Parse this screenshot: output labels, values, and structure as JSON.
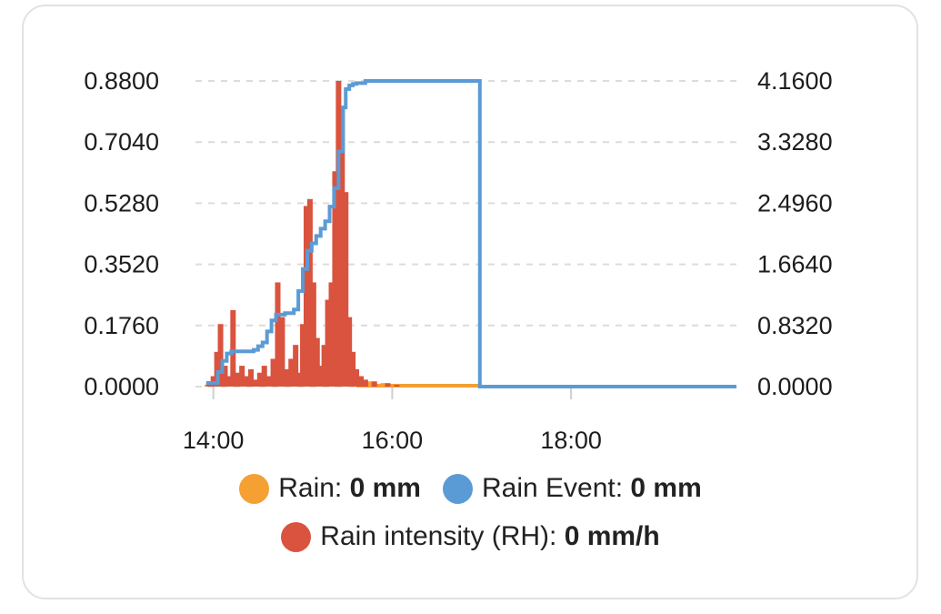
{
  "chart_data": {
    "type": "bar+line",
    "x_ticks": [
      "14:00",
      "16:00",
      "18:00"
    ],
    "y_left_ticks": [
      "0.0000",
      "0.1760",
      "0.3520",
      "0.5280",
      "0.7040",
      "0.8800"
    ],
    "y_right_ticks": [
      "0.0000",
      "0.8320",
      "1.6640",
      "2.4960",
      "3.3280",
      "4.1600"
    ],
    "y_left_range": [
      0,
      0.88
    ],
    "y_right_range": [
      0,
      4.16
    ],
    "x_range_hours": [
      13.8,
      19.9
    ],
    "grid": true,
    "legend_placement": "bottom",
    "series": [
      {
        "name": "Rain",
        "current": "0 mm",
        "color": "#f4a033",
        "axis": "left",
        "style": "bar",
        "x": [
          13.93,
          14.05,
          14.15,
          14.25,
          14.35,
          14.45,
          14.55,
          14.65,
          14.75,
          14.85,
          14.95,
          15.02,
          15.08,
          15.14,
          15.2,
          15.26,
          15.32,
          15.38,
          15.44,
          15.5,
          15.56,
          15.65,
          15.75,
          15.9,
          16.05
        ],
        "values": [
          0.005,
          0.01,
          0.02,
          0.015,
          0.01,
          0.015,
          0.02,
          0.02,
          0.03,
          0.025,
          0.02,
          0.03,
          0.045,
          0.03,
          0.02,
          0.025,
          0.035,
          0.045,
          0.06,
          0.07,
          0.03,
          0.02,
          0.015,
          0.01,
          0.005
        ]
      },
      {
        "name": "Rain intensity (RH)",
        "current": "0 mm/h",
        "color": "#d9533f",
        "axis": "left",
        "style": "bar",
        "x": [
          13.95,
          14.0,
          14.04,
          14.08,
          14.13,
          14.18,
          14.22,
          14.27,
          14.32,
          14.37,
          14.42,
          14.47,
          14.52,
          14.57,
          14.62,
          14.67,
          14.72,
          14.77,
          14.82,
          14.87,
          14.92,
          14.97,
          15.0,
          15.04,
          15.08,
          15.12,
          15.16,
          15.2,
          15.24,
          15.28,
          15.32,
          15.36,
          15.4,
          15.44,
          15.48,
          15.52,
          15.56,
          15.6,
          15.65,
          15.7,
          15.8,
          15.95,
          16.05
        ],
        "values": [
          0.01,
          0.03,
          0.1,
          0.18,
          0.06,
          0.03,
          0.22,
          0.04,
          0.06,
          0.03,
          0.05,
          0.02,
          0.04,
          0.06,
          0.03,
          0.08,
          0.3,
          0.2,
          0.05,
          0.08,
          0.12,
          0.04,
          0.18,
          0.52,
          0.54,
          0.3,
          0.14,
          0.06,
          0.12,
          0.25,
          0.3,
          0.62,
          0.88,
          0.8,
          0.56,
          0.2,
          0.1,
          0.05,
          0.03,
          0.02,
          0.015,
          0.01,
          0.005
        ]
      },
      {
        "name": "Rain Event",
        "current": "0 mm",
        "color": "#5b9bd5",
        "axis": "right",
        "style": "step-line",
        "x": [
          13.92,
          14.0,
          14.05,
          14.1,
          14.15,
          14.2,
          14.3,
          14.45,
          14.5,
          14.55,
          14.6,
          14.65,
          14.7,
          14.8,
          14.85,
          14.9,
          14.95,
          15.0,
          15.05,
          15.1,
          15.15,
          15.2,
          15.25,
          15.3,
          15.35,
          15.4,
          15.45,
          15.48,
          15.52,
          15.56,
          15.6,
          15.7,
          16.2,
          16.6,
          16.98,
          16.98,
          17.5,
          18.5,
          19.85
        ],
        "values": [
          0.05,
          0.05,
          0.2,
          0.35,
          0.45,
          0.48,
          0.48,
          0.5,
          0.55,
          0.6,
          0.75,
          0.9,
          0.98,
          1.0,
          1.0,
          1.05,
          1.3,
          1.6,
          1.85,
          1.95,
          2.05,
          2.15,
          2.25,
          2.45,
          2.7,
          3.2,
          3.8,
          4.05,
          4.1,
          4.12,
          4.13,
          4.16,
          4.16,
          4.16,
          4.16,
          0.0,
          0.0,
          0.0,
          0.0
        ]
      }
    ]
  }
}
